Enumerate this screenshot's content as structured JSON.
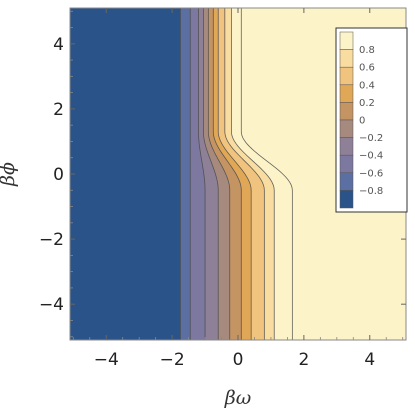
{
  "chart_data": {
    "type": "contour",
    "xlabel": "βω",
    "ylabel": "βϕ",
    "xlim": [
      -5.1,
      5.1
    ],
    "ylim": [
      -5.1,
      5.1
    ],
    "x_ticks": [
      -4,
      -2,
      0,
      2,
      4
    ],
    "y_ticks": [
      -4,
      -2,
      0,
      2,
      4
    ],
    "x_tick_labels": [
      "−4",
      "−2",
      "0",
      "2",
      "4"
    ],
    "y_tick_labels": [
      "−4",
      "−2",
      "0",
      "2",
      "4"
    ],
    "grid": false,
    "legend_position": "top-right",
    "levels": [
      -0.9,
      -0.8,
      -0.7,
      -0.6,
      -0.5,
      -0.4,
      -0.3,
      -0.2,
      -0.1,
      0,
      0.1,
      0.2,
      0.3,
      0.4,
      0.5,
      0.6,
      0.7,
      0.8,
      0.9
    ],
    "legend_values": [
      0.8,
      0.6,
      0.4,
      0.2,
      0,
      -0.2,
      -0.4,
      -0.6,
      -0.8
    ],
    "legend_labels": [
      "0.8",
      "0.6",
      "0.4",
      "0.2",
      "0",
      "−0.2",
      "−0.4",
      "−0.6",
      "−0.8"
    ],
    "contour_lines": [
      {
        "level": -0.8,
        "x_top": -1.75,
        "x_bottom": -1.75
      },
      {
        "level": -0.6,
        "x_top": -1.45,
        "x_bottom": -1.45
      },
      {
        "level": -0.4,
        "x_top": -1.2,
        "x_bottom": -1.0
      },
      {
        "level": -0.3,
        "x_top": -1.05,
        "x_bottom": -0.6
      },
      {
        "level": -0.2,
        "x_top": -0.9,
        "x_bottom": -0.25
      },
      {
        "level": -0.1,
        "x_top": -0.75,
        "x_bottom": 0.1
      },
      {
        "level": 0,
        "x_top": -0.6,
        "x_bottom": 0.4
      },
      {
        "level": 0.1,
        "x_top": -0.4,
        "x_bottom": 0.8
      },
      {
        "level": 0.2,
        "x_top": -0.2,
        "x_bottom": 1.1
      },
      {
        "level": 0.4,
        "x_top": 0.1,
        "x_bottom": 1.65
      }
    ],
    "colors": {
      "-0.9": "#2a5489",
      "-0.7": "#5c6fa2",
      "-0.5": "#7c78a0",
      "-0.3": "#8e8096",
      "-0.1": "#a68a7e",
      "0.1": "#c49463",
      "0.3": "#dfa756",
      "0.5": "#f0c47e",
      "0.7": "#f8dca0",
      "0.9": "#fdf3c8"
    }
  }
}
